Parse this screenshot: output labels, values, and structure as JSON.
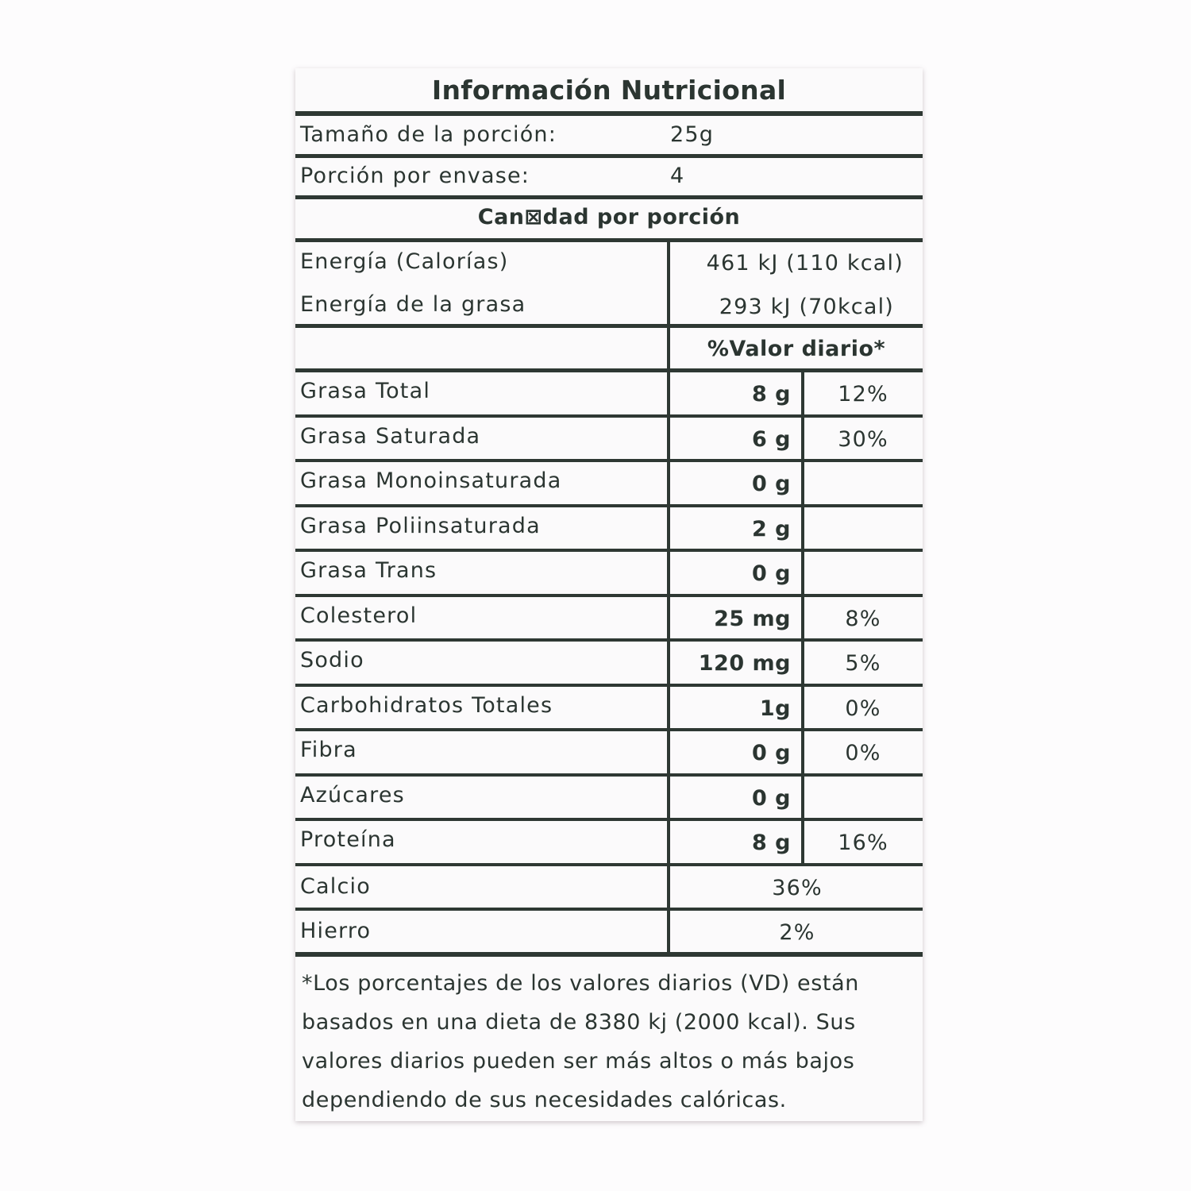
{
  "title": "Información Nutricional",
  "serving_size": {
    "label": "Tamaño de la porción:",
    "value": "25g"
  },
  "servings_per_container": {
    "label": "Porción por envase:",
    "value": "4"
  },
  "amount_per_serving": "Can⊠dad por porción",
  "energy": [
    {
      "label": "Energía (Calorías)",
      "value": "461 kJ (110 kcal)"
    },
    {
      "label": "Energía de la grasa",
      "value": "293 kJ (70kcal)"
    }
  ],
  "dv_header": "%Valor diario*",
  "nutrients": [
    {
      "label": "Grasa Total",
      "amount": "8 g",
      "dv": "12%"
    },
    {
      "label": "Grasa Saturada",
      "amount": "6 g",
      "dv": "30%"
    },
    {
      "label": "Grasa Monoinsaturada",
      "amount": "0 g",
      "dv": ""
    },
    {
      "label": "Grasa Poliinsaturada",
      "amount": "2 g",
      "dv": ""
    },
    {
      "label": "Grasa Trans",
      "amount": "0 g",
      "dv": ""
    },
    {
      "label": "Colesterol",
      "amount": "25 mg",
      "dv": "8%"
    },
    {
      "label": "Sodio",
      "amount": "120 mg",
      "dv": "5%"
    },
    {
      "label": "Carbohidratos Totales",
      "amount": "1g",
      "dv": "0%"
    },
    {
      "label": "Fibra",
      "amount": "0 g",
      "dv": "0%"
    },
    {
      "label": "Azúcares",
      "amount": "0 g",
      "dv": ""
    },
    {
      "label": "Proteína",
      "amount": "8 g",
      "dv": "16%"
    }
  ],
  "minerals": [
    {
      "label": "Calcio",
      "dv": "36%"
    },
    {
      "label": "Hierro",
      "dv": "2%"
    }
  ],
  "footnote": "*Los porcentajes de los valores diarios (VD) están basados en una dieta de 8380 kj (2000 kcal). Sus valores diarios pueden ser más altos o más bajos dependiendo de sus necesidades calóricas."
}
